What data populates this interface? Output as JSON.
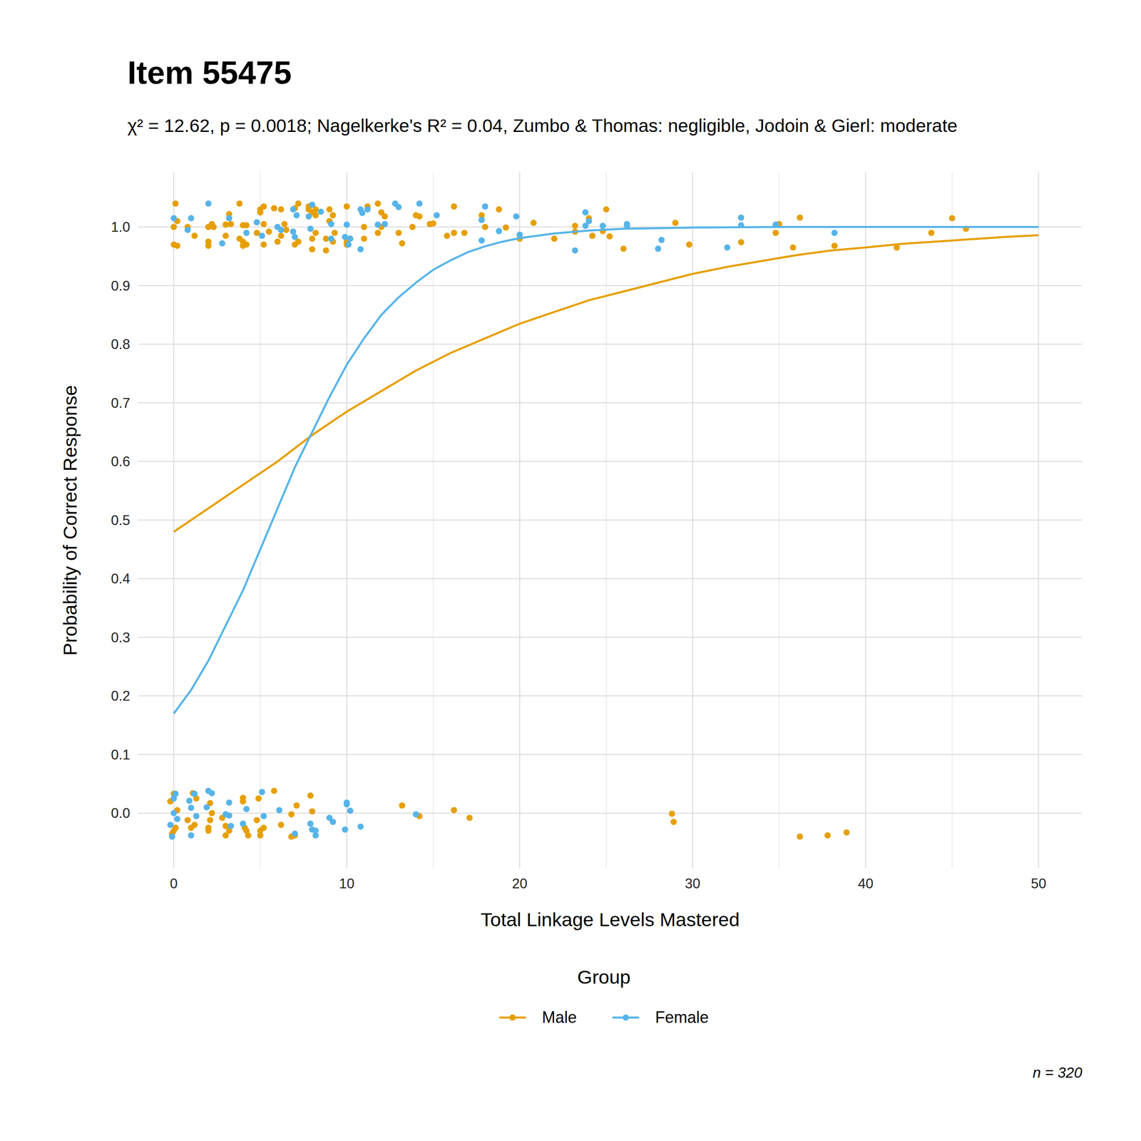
{
  "chart_data": {
    "type": "scatter",
    "title": "Item 55475",
    "subtitle": "χ² = 12.62, p = 0.0018; Nagelkerke's R² = 0.04, Zumbo & Thomas: negligible, Jodoin & Gierl: moderate",
    "x_label": "Total Linkage Levels Mastered",
    "y_label": "Probability of Correct Response",
    "legend_title": "Group",
    "caption": "n = 320",
    "legend": "bottom",
    "grid": true,
    "xlim": [
      -2.06,
      52.52
    ],
    "ylim": [
      -0.094,
      1.093
    ],
    "xticks": [
      0,
      10,
      20,
      30,
      40,
      50
    ],
    "yticks": [
      {
        "value": 0,
        "label": "0.0"
      },
      0.1,
      0.2,
      0.3,
      0.4,
      0.5,
      0.6,
      0.7,
      0.8,
      0.9,
      {
        "value": 1,
        "label": "1.0"
      }
    ],
    "series": [
      {
        "name": "Male",
        "color": "#E69F00",
        "type": "scatter",
        "marker": "circle",
        "x": [
          0,
          0.1,
          0.2,
          0,
          0.2,
          0.8,
          1.2,
          2,
          2,
          2,
          2.2,
          2.3,
          3,
          3,
          3.2,
          3.3,
          3.8,
          3.8,
          4,
          4,
          4,
          4.2,
          4.2,
          4.8,
          5,
          5,
          5.2,
          5.2,
          5.2,
          5.5,
          5.8,
          6,
          6.2,
          6.2,
          6.4,
          6.5,
          7,
          7,
          7.2,
          7.2,
          7.8,
          7.8,
          8,
          8,
          8,
          8.2,
          8.2,
          8.2,
          8.8,
          8.8,
          9,
          9,
          9.2,
          9.2,
          9.3,
          10,
          10,
          10,
          10.2,
          11,
          11,
          11.2,
          11.8,
          11.8,
          12,
          12,
          12.2,
          13,
          13.2,
          13.8,
          14,
          14.2,
          14.8,
          15,
          15.8,
          16.2,
          16.2,
          16.8,
          17.8,
          18,
          18.8,
          19.2,
          20,
          20.8,
          22,
          23.2,
          23.2,
          24,
          24.2,
          24.8,
          25,
          25.2,
          26,
          29,
          29.8,
          32.8,
          34.8,
          35,
          35.8,
          36.2,
          38.2,
          41.8,
          43.8,
          45,
          45.8,
          0,
          -0.2,
          0,
          -0.1,
          0.1,
          0.2,
          0.8,
          1,
          1.1,
          1.3,
          1.2,
          2,
          2,
          2.1,
          2.2,
          2.1,
          2.8,
          3,
          3,
          3.2,
          4,
          4,
          4.1,
          4.2,
          4.3,
          4.8,
          4.9,
          5,
          5,
          5.2,
          5.8,
          6.2,
          6.8,
          7,
          6.8,
          7.1,
          7.9,
          8,
          13.2,
          14.2,
          16.2,
          17.1,
          28.8,
          28.9,
          36.2,
          37.8,
          38.9
        ],
        "values": [
          0.97,
          1.04,
          1.01,
          1.0,
          0.968,
          1.0,
          0.985,
          0.975,
          0.968,
          1.0,
          1.005,
          1.0,
          1.004,
          0.985,
          1.022,
          1.005,
          1.04,
          0.98,
          0.975,
          1.003,
          0.968,
          0.97,
          1.003,
          0.99,
          1.025,
          1.03,
          1.035,
          1.005,
          0.97,
          0.992,
          1.032,
          0.975,
          1.03,
          0.985,
          1.005,
          0.995,
          1.032,
          0.97,
          1.04,
          0.975,
          1.03,
          1.035,
          0.98,
          1.025,
          0.962,
          1.02,
          1.03,
          0.99,
          0.96,
          0.98,
          1.03,
          1.01,
          1.02,
          0.975,
          0.99,
          0.97,
          1.035,
          0.975,
          0.98,
          0.98,
          1.0,
          1.035,
          1.04,
          0.99,
          1.025,
          1.0,
          1.018,
          0.99,
          0.972,
          1.0,
          1.02,
          1.018,
          1.005,
          1.006,
          0.985,
          1.035,
          0.99,
          0.99,
          1.02,
          1.0,
          1.03,
          0.999,
          0.98,
          1.007,
          0.98,
          0.992,
          1.002,
          1.015,
          0.985,
          0.993,
          1.03,
          0.984,
          0.963,
          1.007,
          0.97,
          0.974,
          0.99,
          1.005,
          0.965,
          1.016,
          0.968,
          0.965,
          0.99,
          1.015,
          0.997,
          0.033,
          0.02,
          -0.03,
          -0.035,
          -0.025,
          0.005,
          -0.012,
          -0.025,
          0.034,
          0.025,
          -0.02,
          -0.025,
          -0.03,
          0.017,
          0.0,
          -0.012,
          -0.008,
          -0.022,
          -0.038,
          -0.03,
          0.026,
          0.02,
          -0.025,
          -0.03,
          -0.038,
          -0.012,
          0.025,
          -0.038,
          -0.03,
          -0.025,
          0.038,
          -0.02,
          -0.04,
          -0.038,
          -0.002,
          0.013,
          0.03,
          0.003,
          0.013,
          -0.005,
          0.005,
          -0.008,
          -0.001,
          -0.015,
          -0.04,
          -0.038,
          -0.033
        ]
      },
      {
        "name": "Female",
        "color": "#56B4E9",
        "type": "scatter",
        "marker": "circle",
        "x": [
          0,
          0.8,
          1,
          2,
          2.8,
          3.2,
          4.2,
          4.8,
          5.1,
          6,
          6.2,
          6.9,
          6.9,
          7,
          7.1,
          7.8,
          7.9,
          8,
          8.5,
          9.1,
          9.1,
          9.9,
          10,
          10.1,
          10.2,
          10.8,
          10.8,
          10.9,
          11.2,
          11.8,
          12.2,
          12.8,
          13,
          14.2,
          15.2,
          17.8,
          17.8,
          18,
          18.8,
          19.8,
          20,
          23.2,
          23.8,
          23.8,
          24,
          24.8,
          26.2,
          26.2,
          28,
          28.2,
          32,
          32.8,
          32.8,
          34.8,
          38.2,
          0,
          -0.2,
          0,
          -0.1,
          0.1,
          0.2,
          0.9,
          1,
          1,
          1.2,
          1.3,
          1.9,
          2,
          2.2,
          3,
          3.2,
          3.2,
          3.3,
          4,
          4.2,
          5.1,
          5.2,
          6.1,
          7,
          7.9,
          8,
          8.2,
          8.2,
          9,
          9.2,
          9.9,
          10,
          10,
          10.2,
          10.8,
          14
        ],
        "values": [
          1.015,
          0.995,
          1.015,
          1.04,
          0.972,
          1.015,
          0.99,
          1.008,
          0.985,
          1.0,
          0.995,
          0.992,
          1.03,
          0.983,
          1.02,
          1.018,
          0.997,
          1.038,
          1.026,
          0.98,
          1.005,
          0.983,
          1.004,
          0.97,
          0.98,
          0.962,
          1.03,
          1.024,
          1.03,
          1.004,
          1.005,
          1.04,
          1.034,
          1.04,
          1.02,
          1.012,
          0.977,
          1.035,
          0.993,
          1.018,
          0.987,
          0.96,
          1.025,
          1.002,
          1.01,
          1.002,
          1.005,
          1.002,
          0.963,
          0.978,
          0.965,
          1.016,
          1.003,
          1.004,
          0.99,
          0.025,
          -0.02,
          0.0,
          -0.04,
          0.033,
          -0.01,
          0.021,
          -0.038,
          0.009,
          0.033,
          -0.005,
          0.01,
          0.038,
          0.034,
          -0.002,
          -0.004,
          0.018,
          -0.022,
          -0.018,
          0.007,
          0.036,
          -0.005,
          0.005,
          -0.035,
          -0.018,
          -0.028,
          -0.03,
          -0.038,
          -0.008,
          -0.015,
          -0.028,
          0.015,
          0.018,
          0.004,
          -0.023,
          -0.002
        ]
      },
      {
        "name": "Male",
        "color": "#E69F00",
        "type": "line",
        "line_style": "solid",
        "x": [
          0,
          2,
          4,
          6,
          8,
          10,
          12,
          14,
          16,
          18,
          20,
          22,
          24,
          26,
          28,
          30,
          32,
          34,
          36,
          38,
          40,
          42,
          44,
          46,
          48,
          50
        ],
        "values": [
          0.48,
          0.52,
          0.56,
          0.6,
          0.645,
          0.685,
          0.72,
          0.755,
          0.785,
          0.81,
          0.835,
          0.855,
          0.875,
          0.89,
          0.905,
          0.92,
          0.932,
          0.942,
          0.952,
          0.96,
          0.965,
          0.971,
          0.975,
          0.979,
          0.983,
          0.986
        ]
      },
      {
        "name": "Female",
        "color": "#56B4E9",
        "type": "line",
        "line_style": "solid",
        "x": [
          0,
          1,
          2,
          3,
          4,
          5,
          6,
          7,
          8,
          9,
          10,
          11,
          12,
          13,
          14,
          15,
          16,
          17,
          18,
          19,
          20,
          22,
          24,
          26,
          28,
          30,
          35,
          40,
          45,
          50
        ],
        "values": [
          0.17,
          0.21,
          0.26,
          0.32,
          0.38,
          0.45,
          0.52,
          0.59,
          0.65,
          0.71,
          0.765,
          0.81,
          0.85,
          0.88,
          0.905,
          0.927,
          0.943,
          0.957,
          0.967,
          0.975,
          0.981,
          0.989,
          0.994,
          0.997,
          0.998,
          0.999,
          1.0,
          1.0,
          1.0,
          1.0
        ]
      }
    ]
  }
}
